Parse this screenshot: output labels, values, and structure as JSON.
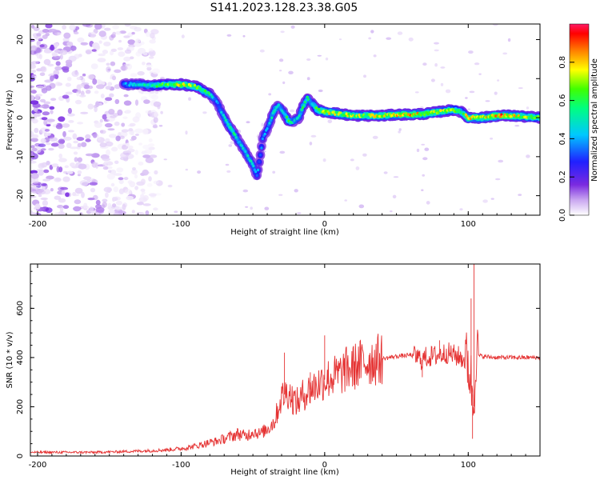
{
  "title": "S141.2023.128.23.38.G05",
  "chart_data": [
    {
      "type": "heatmap",
      "xlabel": "Height of straight line (km)",
      "ylabel": "Frequency (Hz)",
      "xlim": [
        -205,
        150
      ],
      "ylim": [
        -25,
        24
      ],
      "xticks": [
        -200,
        -100,
        0,
        100
      ],
      "yticks": [
        -20,
        -10,
        0,
        10,
        20
      ],
      "colorbar": {
        "label": "Normalized spectral amplitude",
        "range": [
          0,
          1
        ],
        "ticks": [
          0.0,
          0.2,
          0.4,
          0.6,
          0.8
        ],
        "tick_labels": [
          "0.0",
          "0.2",
          "0.4",
          "0.6",
          "0.8"
        ]
      },
      "ridge": {
        "x": [
          -140,
          -130,
          -120,
          -110,
          -100,
          -90,
          -80,
          -75,
          -70,
          -65,
          -60,
          -55,
          -50,
          -47,
          -43,
          -40,
          -35,
          -32,
          -28,
          -25,
          -22,
          -18,
          -15,
          -12,
          -10,
          -5,
          0,
          10,
          20,
          30,
          40,
          50,
          60,
          70,
          80,
          90,
          95,
          100,
          110,
          120,
          130,
          150
        ],
        "frequency": [
          8.5,
          8.5,
          8.2,
          8.5,
          8.5,
          8,
          6,
          4,
          0,
          -3,
          -6,
          -9,
          -12,
          -15,
          -5,
          -3,
          2,
          3,
          1,
          -1,
          -1,
          0,
          3,
          5,
          4,
          2,
          1.5,
          1,
          0.5,
          0.5,
          0.5,
          0.8,
          0.8,
          1,
          1.5,
          2,
          1.5,
          0,
          0,
          0.5,
          0.5,
          0
        ],
        "peak_amplitude": [
          0.4,
          0.5,
          0.6,
          0.7,
          0.85,
          0.7,
          0.6,
          0.4,
          0.5,
          0.6,
          0.5,
          0.5,
          0.5,
          0.4,
          0.4,
          0.4,
          0.6,
          0.5,
          0.5,
          0.7,
          0.5,
          0.5,
          0.6,
          0.6,
          0.5,
          0.7,
          0.8,
          0.8,
          0.8,
          0.75,
          0.8,
          0.85,
          0.9,
          0.8,
          0.8,
          0.7,
          0.6,
          0.9,
          0.8,
          0.95,
          0.85,
          0.7
        ]
      },
      "noise_region_x": [
        -205,
        -115
      ]
    },
    {
      "type": "line",
      "xlabel": "Height of straight line (km)",
      "ylabel": "SNR (10 * v/v)",
      "xlim": [
        -205,
        150
      ],
      "ylim": [
        0,
        780
      ],
      "xticks": [
        -200,
        -100,
        0,
        100
      ],
      "yticks": [
        0,
        200,
        400,
        600
      ],
      "color": "#e53333",
      "series": [
        {
          "x": [
            -205,
            -180,
            -160,
            -140,
            -120,
            -110,
            -100,
            -90,
            -80,
            -75,
            -70,
            -65,
            -60,
            -55,
            -50,
            -45,
            -40,
            -35,
            -32,
            -30,
            -28,
            -25,
            -22,
            -20,
            -18,
            -15,
            -12,
            -10,
            -5,
            0,
            5,
            10,
            15,
            20,
            25,
            30,
            40,
            50,
            60,
            65,
            68,
            70,
            75,
            80,
            85,
            90,
            95,
            100,
            102,
            104,
            105,
            106,
            110,
            120,
            130,
            140,
            150
          ],
          "y": [
            15,
            15,
            15,
            18,
            22,
            25,
            30,
            40,
            55,
            60,
            70,
            80,
            90,
            80,
            100,
            90,
            110,
            140,
            200,
            240,
            250,
            260,
            230,
            220,
            220,
            250,
            260,
            270,
            290,
            310,
            320,
            330,
            350,
            360,
            375,
            385,
            395,
            405,
            410,
            400,
            390,
            400,
            405,
            410,
            420,
            410,
            400,
            380,
            300,
            200,
            420,
            410,
            405,
            400,
            400,
            400,
            400
          ]
        }
      ],
      "spikes": [
        {
          "x": -28,
          "y": 420
        },
        {
          "x": -10,
          "y": 340
        },
        {
          "x": 0,
          "y": 490
        },
        {
          "x": 68,
          "y": 320
        },
        {
          "x": 80,
          "y": 470
        },
        {
          "x": 102,
          "y": 640
        },
        {
          "x": 104,
          "y": 780
        },
        {
          "x": 103,
          "y": 70
        }
      ]
    }
  ]
}
